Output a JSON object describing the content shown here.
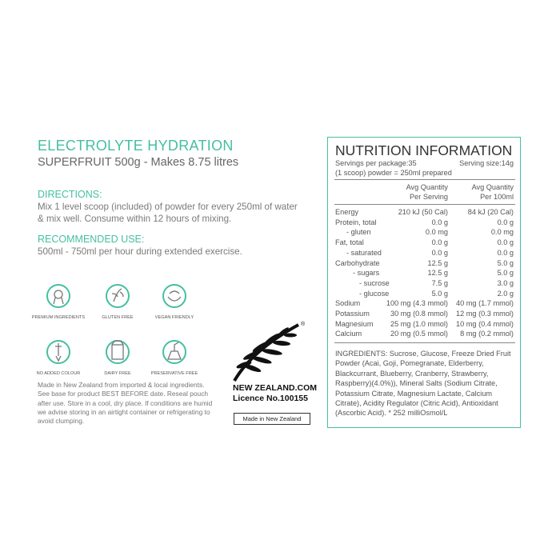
{
  "header": {
    "title": "ELECTROLYTE HYDRATION",
    "subtitle": "SUPERFRUIT 500g - Makes 8.75 litres"
  },
  "directions": {
    "heading": "DIRECTIONS:",
    "text": "Mix 1 level scoop (included) of powder for every 250ml of water & mix well. Consume within 12 hours of mixing."
  },
  "recommended": {
    "heading": "RECOMMENDED USE:",
    "text": "500ml - 750ml per hour during extended exercise."
  },
  "icons": [
    "PREMIUM INGREDIENTS",
    "GLUTEN FREE",
    "VEGAN FRIENDLY",
    "NO ADDED COLOUR",
    "DAIRY FREE",
    "PRESERVATIVE FREE"
  ],
  "storage_note": "Made in New Zealand from imported & local ingredients. See base for product BEST BEFORE date. Reseal pouch after use. Store in a cool, dry place. If conditions are humid we advise storing in an airtight container or refrigerating to avoid clumping.",
  "badge": {
    "brand": "NEW ZEALAND.COM",
    "registered": "®",
    "licence": "Licence No.100155",
    "made_in": "Made in New Zealand"
  },
  "nutrition": {
    "title": "NUTRITION INFORMATION",
    "servings": "Servings per package:35",
    "serving_size": "Serving size:14g",
    "scoop": "(1 scoop) powder = 250ml prepared",
    "columns": [
      [
        "Avg Quantity",
        "Per Serving"
      ],
      [
        "Avg Quantity",
        "Per 100ml"
      ]
    ],
    "rows": [
      [
        "Energy",
        "210 kJ (50 Cal)",
        "84 kJ (20 Cal)"
      ],
      [
        "Protein, total",
        "0.0 g",
        "0.0 g"
      ],
      [
        "- gluten",
        "0.0 mg",
        "0.0 mg"
      ],
      [
        "Fat, total",
        "0.0 g",
        "0.0 g"
      ],
      [
        "- saturated",
        "0.0 g",
        "0.0 g"
      ],
      [
        "Carbohydrate",
        "12.5 g",
        "5.0 g"
      ],
      [
        "- sugars",
        "12.5 g",
        "5.0 g"
      ],
      [
        "- sucrose",
        "7.5 g",
        "3.0 g"
      ],
      [
        "- glucose",
        "5.0 g",
        "2.0 g"
      ],
      [
        "Sodium",
        "100 mg (4.3 mmol)",
        "40 mg (1.7 mmol)"
      ],
      [
        "Potassium",
        "30 mg (0.8 mmol)",
        "12 mg (0.3 mmol)"
      ],
      [
        "Magnesium",
        "25 mg (1.0 mmol)",
        "10 mg (0.4 mmol)"
      ],
      [
        "Calcium",
        "20 mg (0.5 mmol)",
        "8 mg (0.2 mmol)"
      ]
    ],
    "ingredients": "INGREDIENTS: Sucrose, Glucose, Freeze Dried Fruit Powder (Acai, Goji, Pomegranate, Elderberry, Blackcurrant, Blueberry, Cranberry, Strawberry, Raspberry)(4.0%)), Mineral Salts (Sodium Citrate, Potassium Citrate, Magnesium Lactate, Calcium Citrate), Acidity Regulator (Citric Acid), Antioxidant (Ascorbic Acid).  * 252 milliOsmol/L"
  }
}
